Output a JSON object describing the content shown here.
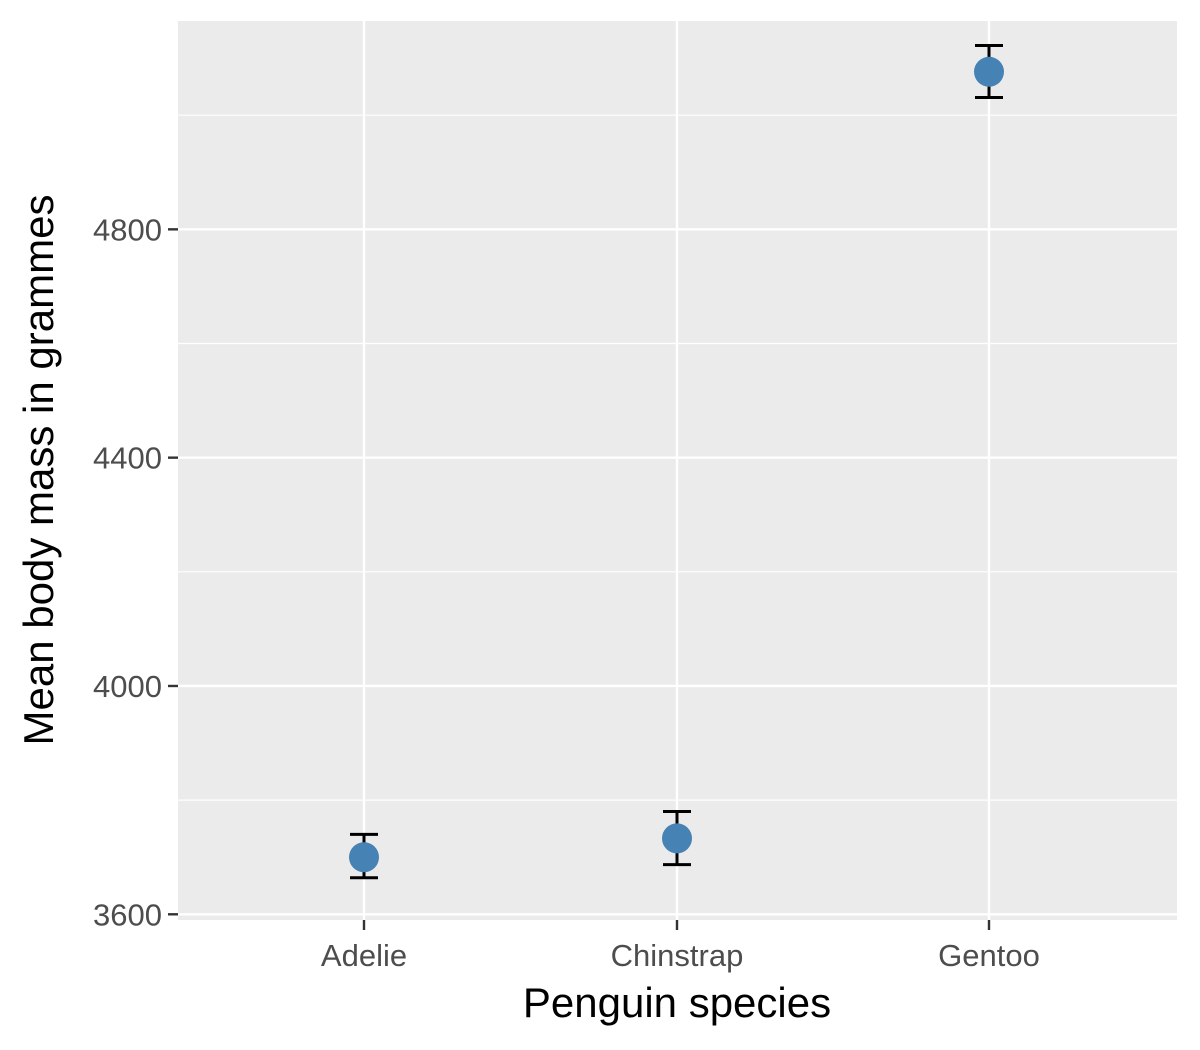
{
  "chart_data": {
    "type": "scatter",
    "title": "",
    "xlabel": "Penguin species",
    "ylabel": "Mean body mass in grammes",
    "categories": [
      "Adelie",
      "Chinstrap",
      "Gentoo"
    ],
    "series": [
      {
        "values": [
          3700,
          3733,
          5076
        ],
        "error_low": [
          3664,
          3687,
          5031
        ],
        "error_high": [
          3740,
          3780,
          5122
        ]
      }
    ],
    "y_ticks": [
      3600,
      4000,
      4400,
      4800
    ],
    "y_tick_labels": [
      "3600",
      "4000",
      "4400",
      "4800"
    ],
    "ylim": [
      3590,
      5165
    ],
    "grid": true,
    "legend": "none",
    "colors": {
      "point": "#4682b4",
      "errorbar": "#000000",
      "panel": "#ebebeb",
      "grid": "#ffffff",
      "tick_label": "#4d4d4d",
      "axis_title": "#000000"
    }
  }
}
